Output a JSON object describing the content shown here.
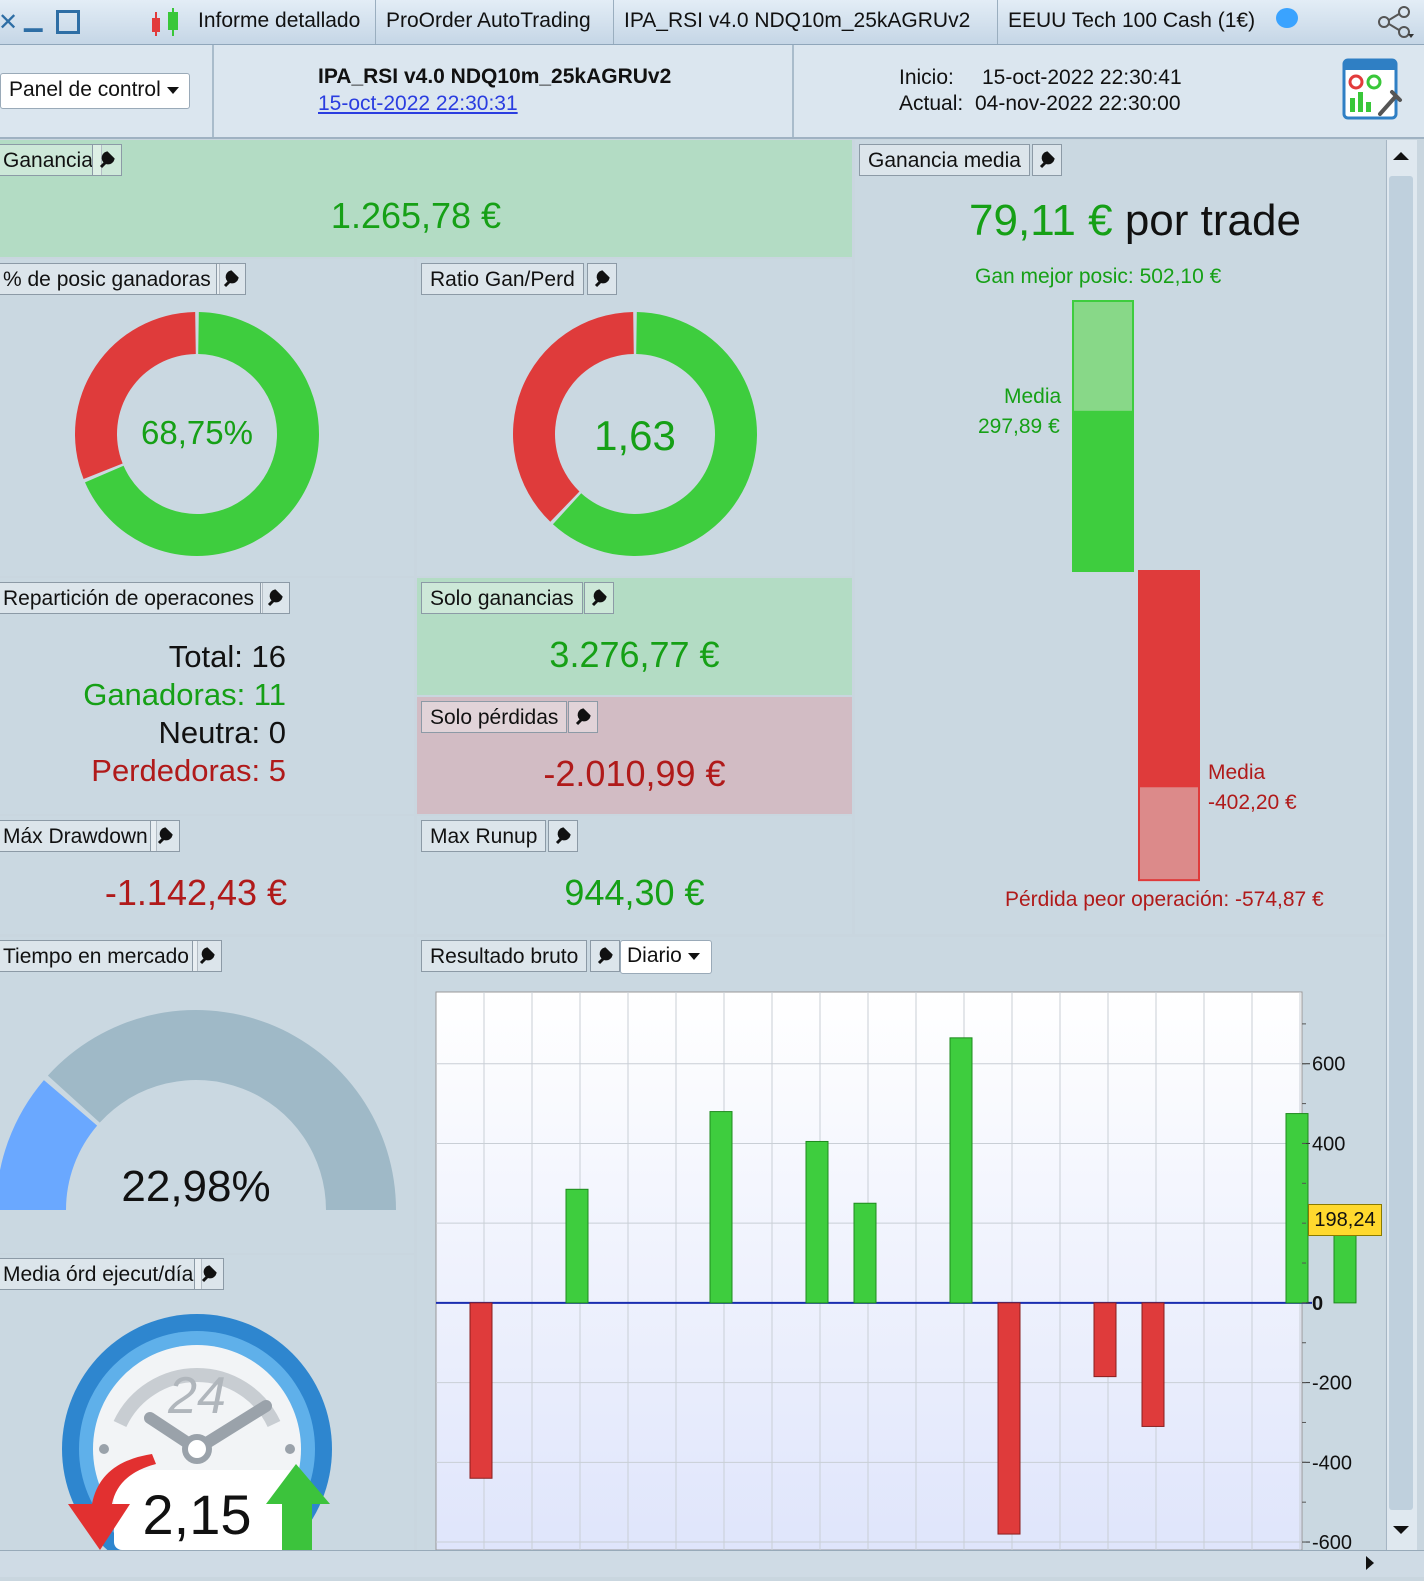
{
  "titlebar": {
    "tabs": [
      "Informe detallado",
      "ProOrder AutoTrading",
      "IPA_RSI v4.0 NDQ10m_25kAGRUv2",
      "EEUU Tech 100 Cash (1€)"
    ]
  },
  "header": {
    "panel_button": "Panel de control",
    "strategy_name": "IPA_RSI v4.0 NDQ10m_25kAGRUv2",
    "strategy_date": "15-oct-2022 22:30:31",
    "start_label": "Inicio:",
    "start_value": "15-oct-2022 22:30:41",
    "current_label": "Actual:",
    "current_value": "04-nov-2022 22:30:00"
  },
  "ganancia": {
    "label": "Ganancia",
    "value": "1.265,78 €"
  },
  "win_pct": {
    "label": "% de posic ganadoras",
    "value": "68,75%",
    "fraction": 0.6875
  },
  "ratio": {
    "label": "Ratio Gan/Perd",
    "value": "1,63",
    "fraction": 0.6198
  },
  "reparticion": {
    "label": "Repartición de operacones",
    "total": "Total: 16",
    "ganadoras": "Ganadoras: 11",
    "neutra": "Neutra: 0",
    "perdedoras": "Perdedoras: 5"
  },
  "solo_ganancias": {
    "label": "Solo ganancias",
    "value": "3.276,77 €"
  },
  "solo_perdidas": {
    "label": "Solo pérdidas",
    "value": "-2.010,99 €"
  },
  "drawdown": {
    "label": "Máx Drawdown",
    "value": "-1.142,43 €"
  },
  "runup": {
    "label": "Max Runup",
    "value": "944,30 €"
  },
  "ganancia_media": {
    "label": "Ganancia media",
    "value": "79,11 €",
    "suffix": "por trade",
    "best": "Gan mejor posic: 502,10 €",
    "media_label": "Media",
    "media_win": "297,89 €",
    "media_loss": "-402,20 €",
    "worst": "Pérdida peor operación: -574,87 €",
    "best_value": 502.1,
    "avg_win_value": 297.89,
    "avg_loss_value": -402.2,
    "worst_value": -574.87
  },
  "tiempo": {
    "label": "Tiempo en mercado",
    "value": "22,98%",
    "fraction": 0.2298
  },
  "media_ord": {
    "label": "Media órd ejecut/día",
    "value": "2,15",
    "clock_label": "24"
  },
  "resultado": {
    "label": "Resultado bruto",
    "period": "Diario",
    "current_value": "198,24"
  },
  "colors": {
    "green": "#3ecd3e",
    "red": "#df3b3b",
    "gauge_blue": "#6aa8ff",
    "gauge_gray": "#9fb9c7"
  },
  "chart_data": {
    "type": "bar",
    "values": [
      -440,
      285,
      480,
      405,
      250,
      665,
      -580,
      -185,
      -310,
      475,
      198.24
    ],
    "ylim": [
      -620,
      780
    ],
    "yticks": [
      600,
      400,
      0,
      -200,
      -400,
      -600
    ],
    "xlabel": "",
    "ylabel": ""
  }
}
